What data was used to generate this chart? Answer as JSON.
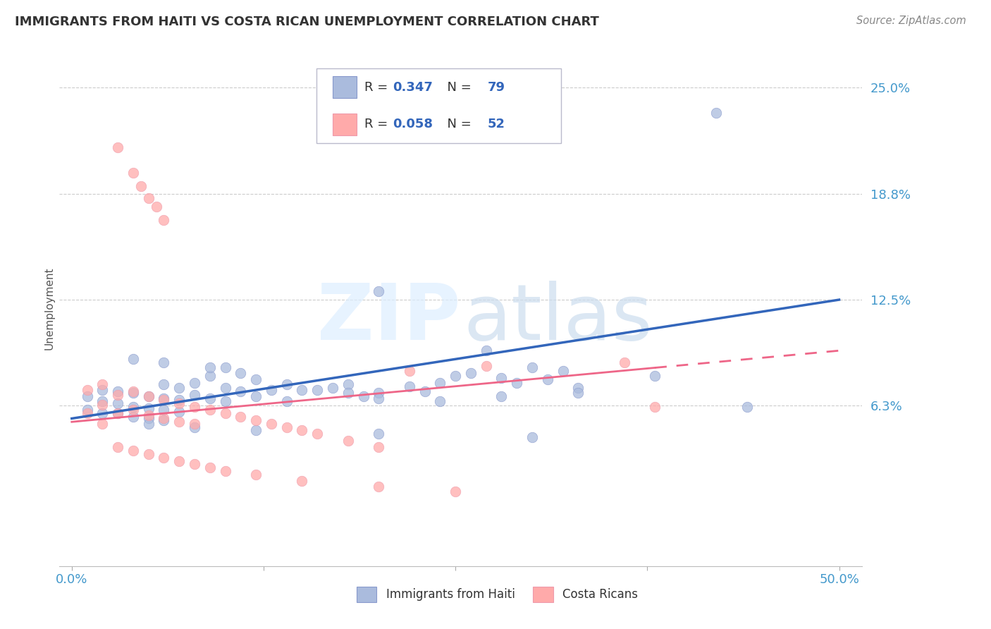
{
  "title": "IMMIGRANTS FROM HAITI VS COSTA RICAN UNEMPLOYMENT CORRELATION CHART",
  "source_text": "Source: ZipAtlas.com",
  "ylabel": "Unemployment",
  "xlim": [
    -0.008,
    0.515
  ],
  "ylim": [
    -0.032,
    0.272
  ],
  "ytick_vals": [
    0.0,
    0.0625,
    0.125,
    0.1875,
    0.25
  ],
  "ytick_labels": [
    "",
    "6.3%",
    "12.5%",
    "18.8%",
    "25.0%"
  ],
  "xtick_vals": [
    0.0,
    0.125,
    0.25,
    0.375,
    0.5
  ],
  "xtick_labels": [
    "0.0%",
    "",
    "",
    "",
    "50.0%"
  ],
  "blue_R": 0.347,
  "blue_N": 79,
  "pink_R": 0.058,
  "pink_N": 52,
  "blue_dot_color": "#AABBDD",
  "pink_dot_color": "#FFAAAA",
  "blue_line_color": "#3366BB",
  "pink_line_color": "#EE6688",
  "legend_label_blue": "Immigrants from Haiti",
  "legend_label_pink": "Costa Ricans",
  "watermark_zip": "ZIP",
  "watermark_atlas": "atlas",
  "bg_color": "#FFFFFF",
  "grid_color": "#CCCCCC",
  "tick_color": "#4499CC",
  "title_color": "#333333",
  "source_color": "#888888",
  "rn_label_color": "#333333",
  "rn_value_color": "#3366BB"
}
